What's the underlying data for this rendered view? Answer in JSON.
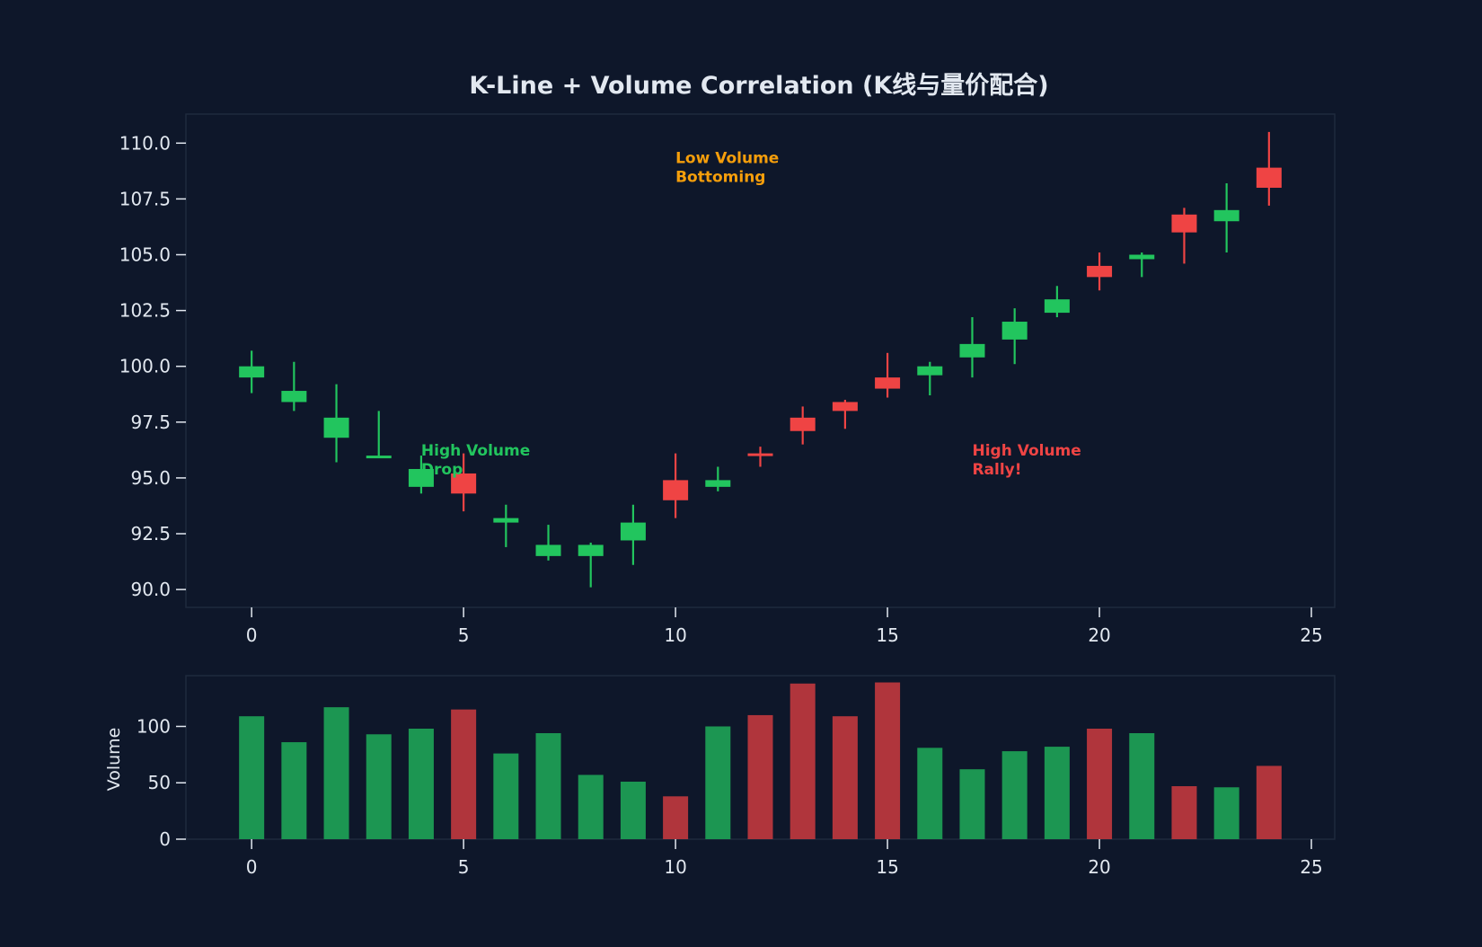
{
  "chart_data": {
    "type": "candlestick",
    "title": "K-Line + Volume Correlation (K线与量价配合)",
    "colors": {
      "background": "#0e172a",
      "up": "#22c55e",
      "down": "#ef4444",
      "up_volume": "#1c9652",
      "down_volume": "#b0353c",
      "axis": "#e2e8f0",
      "frame": "#1f2a3c",
      "low_volume_label": "#f59e0b"
    },
    "price_axis": {
      "ylim": [
        89.2,
        111.3
      ],
      "ticks": [
        90,
        92.5,
        95,
        97.5,
        100,
        102.5,
        105,
        107.5,
        110
      ],
      "tick_labels": [
        "90.0",
        "92.5",
        "95.0",
        "97.5",
        "100.0",
        "102.5",
        "105.0",
        "107.5",
        "110.0"
      ]
    },
    "x_axis": {
      "xlim": [
        -1.55,
        25.55
      ],
      "ticks": [
        0,
        5,
        10,
        15,
        20,
        25
      ],
      "tick_labels": [
        "0",
        "5",
        "10",
        "15",
        "20",
        "25"
      ]
    },
    "volume_axis": {
      "ylabel": "Volume",
      "ylim": [
        0,
        145
      ],
      "ticks": [
        0,
        50,
        100
      ],
      "tick_labels": [
        "0",
        "50",
        "100"
      ]
    },
    "candles": [
      {
        "x": 0,
        "open": 99.5,
        "high": 100.7,
        "low": 98.8,
        "close": 100.0,
        "dir": "up"
      },
      {
        "x": 1,
        "open": 98.4,
        "high": 100.2,
        "low": 98.0,
        "close": 98.9,
        "dir": "up"
      },
      {
        "x": 2,
        "open": 96.8,
        "high": 99.2,
        "low": 95.7,
        "close": 97.7,
        "dir": "up"
      },
      {
        "x": 3,
        "open": 96.0,
        "high": 98.0,
        "low": 95.9,
        "close": 96.0,
        "dir": "up"
      },
      {
        "x": 4,
        "open": 94.6,
        "high": 96.0,
        "low": 94.3,
        "close": 95.4,
        "dir": "up"
      },
      {
        "x": 5,
        "open": 95.2,
        "high": 96.1,
        "low": 93.5,
        "close": 94.3,
        "dir": "down"
      },
      {
        "x": 6,
        "open": 93.0,
        "high": 93.8,
        "low": 91.9,
        "close": 93.2,
        "dir": "up"
      },
      {
        "x": 7,
        "open": 91.5,
        "high": 92.9,
        "low": 91.3,
        "close": 92.0,
        "dir": "up"
      },
      {
        "x": 8,
        "open": 91.5,
        "high": 92.1,
        "low": 90.1,
        "close": 92.0,
        "dir": "up"
      },
      {
        "x": 9,
        "open": 92.2,
        "high": 93.8,
        "low": 91.1,
        "close": 93.0,
        "dir": "up"
      },
      {
        "x": 10,
        "open": 94.9,
        "high": 96.1,
        "low": 93.2,
        "close": 94.0,
        "dir": "down"
      },
      {
        "x": 11,
        "open": 94.6,
        "high": 95.5,
        "low": 94.4,
        "close": 94.9,
        "dir": "up"
      },
      {
        "x": 12,
        "open": 96.1,
        "high": 96.4,
        "low": 95.5,
        "close": 96.0,
        "dir": "down"
      },
      {
        "x": 13,
        "open": 97.7,
        "high": 98.2,
        "low": 96.5,
        "close": 97.1,
        "dir": "down"
      },
      {
        "x": 14,
        "open": 98.4,
        "high": 98.5,
        "low": 97.2,
        "close": 98.0,
        "dir": "down"
      },
      {
        "x": 15,
        "open": 99.5,
        "high": 100.6,
        "low": 98.6,
        "close": 99.0,
        "dir": "down"
      },
      {
        "x": 16,
        "open": 99.6,
        "high": 100.2,
        "low": 98.7,
        "close": 100.0,
        "dir": "up"
      },
      {
        "x": 17,
        "open": 100.4,
        "high": 102.2,
        "low": 99.5,
        "close": 101.0,
        "dir": "up"
      },
      {
        "x": 18,
        "open": 101.2,
        "high": 102.6,
        "low": 100.1,
        "close": 102.0,
        "dir": "up"
      },
      {
        "x": 19,
        "open": 102.4,
        "high": 103.6,
        "low": 102.2,
        "close": 103.0,
        "dir": "up"
      },
      {
        "x": 20,
        "open": 104.5,
        "high": 105.1,
        "low": 103.4,
        "close": 104.0,
        "dir": "down"
      },
      {
        "x": 21,
        "open": 104.8,
        "high": 105.1,
        "low": 104.0,
        "close": 105.0,
        "dir": "up"
      },
      {
        "x": 22,
        "open": 106.8,
        "high": 107.1,
        "low": 104.6,
        "close": 106.0,
        "dir": "down"
      },
      {
        "x": 23,
        "open": 106.5,
        "high": 108.2,
        "low": 105.1,
        "close": 107.0,
        "dir": "up"
      },
      {
        "x": 24,
        "open": 108.9,
        "high": 110.5,
        "low": 107.2,
        "close": 108.0,
        "dir": "down"
      }
    ],
    "volume": [
      {
        "x": 0,
        "value": 109,
        "dir": "up"
      },
      {
        "x": 1,
        "value": 86,
        "dir": "up"
      },
      {
        "x": 2,
        "value": 117,
        "dir": "up"
      },
      {
        "x": 3,
        "value": 93,
        "dir": "up"
      },
      {
        "x": 4,
        "value": 98,
        "dir": "up"
      },
      {
        "x": 5,
        "value": 115,
        "dir": "down"
      },
      {
        "x": 6,
        "value": 76,
        "dir": "up"
      },
      {
        "x": 7,
        "value": 94,
        "dir": "up"
      },
      {
        "x": 8,
        "value": 57,
        "dir": "up"
      },
      {
        "x": 9,
        "value": 51,
        "dir": "up"
      },
      {
        "x": 10,
        "value": 38,
        "dir": "down"
      },
      {
        "x": 11,
        "value": 100,
        "dir": "up"
      },
      {
        "x": 12,
        "value": 110,
        "dir": "down"
      },
      {
        "x": 13,
        "value": 138,
        "dir": "down"
      },
      {
        "x": 14,
        "value": 109,
        "dir": "down"
      },
      {
        "x": 15,
        "value": 139,
        "dir": "down"
      },
      {
        "x": 16,
        "value": 81,
        "dir": "up"
      },
      {
        "x": 17,
        "value": 62,
        "dir": "up"
      },
      {
        "x": 18,
        "value": 78,
        "dir": "up"
      },
      {
        "x": 19,
        "value": 82,
        "dir": "up"
      },
      {
        "x": 20,
        "value": 98,
        "dir": "down"
      },
      {
        "x": 21,
        "value": 94,
        "dir": "up"
      },
      {
        "x": 22,
        "value": 47,
        "dir": "down"
      },
      {
        "x": 23,
        "value": 46,
        "dir": "up"
      },
      {
        "x": 24,
        "value": 65,
        "dir": "down"
      }
    ],
    "annotations": [
      {
        "id": "high-volume-drop",
        "lines": [
          "High Volume",
          "Drop"
        ],
        "x": 4,
        "y": 96.0,
        "color": "#22c55e"
      },
      {
        "id": "low-volume-bottoming",
        "lines": [
          "Low Volume",
          "Bottoming"
        ],
        "x": 10,
        "y": 109.1,
        "color": "#f59e0b"
      },
      {
        "id": "high-volume-rally",
        "lines": [
          "High Volume",
          "Rally!"
        ],
        "x": 17,
        "y": 96.0,
        "color": "#ef4444"
      }
    ]
  }
}
